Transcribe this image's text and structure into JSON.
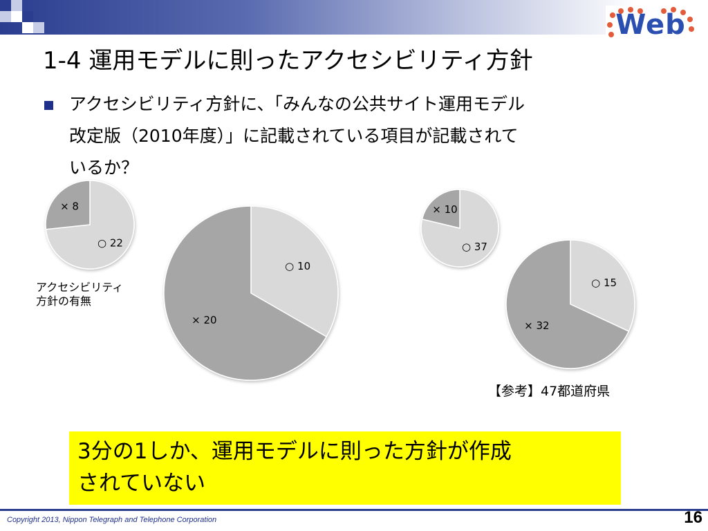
{
  "header": {
    "logo_text": "Web",
    "title": "1-4 運用モデルに則ったアクセシビリティ方針"
  },
  "bullet": {
    "lines": [
      "アクセシビリティ方針に、「みんなの公共サイト運用モデル",
      "改定版（2010年度）」に記載されている項目が記載されて",
      "いるか？"
    ]
  },
  "chart_caption": {
    "lines": [
      "アクセシビリティ",
      "方針の有無"
    ]
  },
  "reference_label": "【参考】47都道府県",
  "conclusion": {
    "lines": [
      "3分の1しか、運用モデルに則った方針が作成",
      "されていない"
    ]
  },
  "footer": {
    "copyright": "Copyright 2013, Nippon Telegraph and Telephone Corporation",
    "page_number": "16"
  },
  "colors": {
    "accent": "#2a3d8f",
    "pie_light": "#d9d9d9",
    "pie_dark": "#a6a6a6",
    "highlight": "#ffff00"
  },
  "chart_data": [
    {
      "type": "pie",
      "title": "",
      "labels": [
        "○ 22",
        "× 8"
      ],
      "values": [
        22,
        8
      ]
    },
    {
      "type": "pie",
      "title": "",
      "labels": [
        "○ 10",
        "× 20"
      ],
      "values": [
        10,
        20
      ]
    },
    {
      "type": "pie",
      "title": "",
      "labels": [
        "○ 37",
        "× 10"
      ],
      "values": [
        37,
        10
      ]
    },
    {
      "type": "pie",
      "title": "",
      "labels": [
        "○ 15",
        "× 32"
      ],
      "values": [
        15,
        32
      ]
    }
  ]
}
